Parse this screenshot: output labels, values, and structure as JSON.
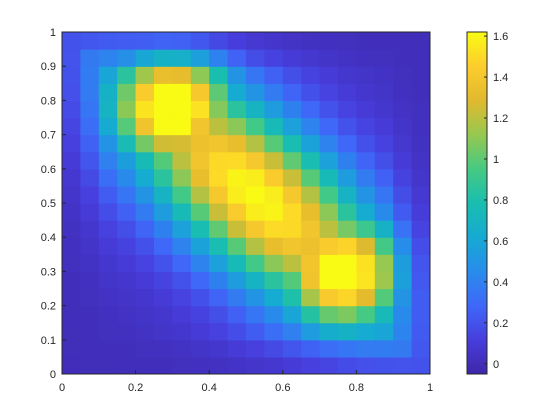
{
  "chart_data": {
    "type": "heatmap",
    "title": "",
    "xlabel": "",
    "ylabel": "",
    "xlim": [
      0,
      1
    ],
    "ylim": [
      0,
      1
    ],
    "x_ticks": [
      "0",
      "0.2",
      "0.4",
      "0.6",
      "0.8",
      "1"
    ],
    "y_ticks": [
      "0",
      "0.1",
      "0.2",
      "0.3",
      "0.4",
      "0.5",
      "0.6",
      "0.7",
      "0.8",
      "0.9",
      "1"
    ],
    "colormap": "parula",
    "colorbar": {
      "range": [
        -0.05,
        1.62
      ],
      "ticks": [
        "0",
        "0.2",
        "0.4",
        "0.6",
        "0.8",
        "1",
        "1.2",
        "1.4",
        "1.6"
      ]
    },
    "peaks": [
      {
        "x": 0.3,
        "y": 0.78,
        "value": 1.6
      },
      {
        "x": 0.76,
        "y": 0.3,
        "value": 1.55
      }
    ],
    "min_value": -0.05,
    "grid_cells": 20
  }
}
